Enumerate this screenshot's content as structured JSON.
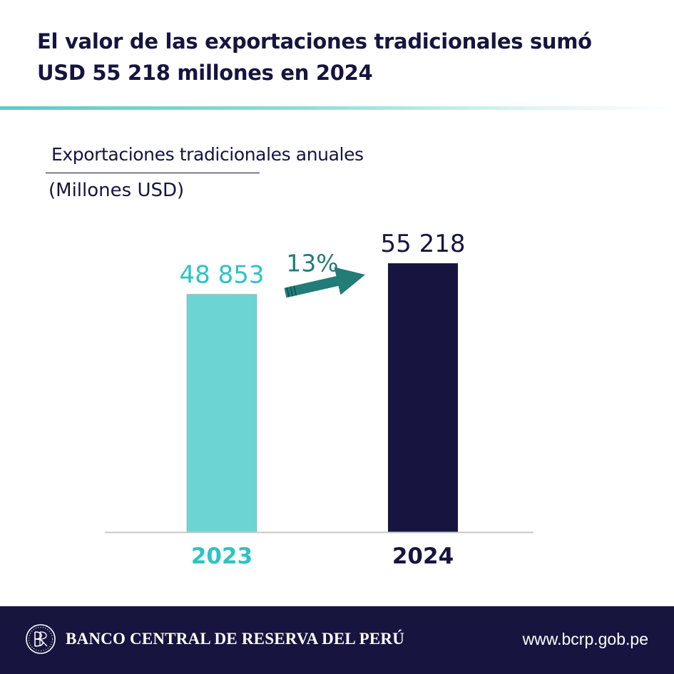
{
  "header": {
    "title_line1": "El valor de las exportaciones tradicionales sumó",
    "title_line2": "USD 55 218 millones en 2024"
  },
  "chart_data": {
    "type": "bar",
    "title": "Exportaciones tradicionales anuales",
    "subtitle": "(Millones USD)",
    "categories": [
      "2023",
      "2024"
    ],
    "values": [
      48853,
      55218
    ],
    "value_labels": [
      "48 853",
      "55 218"
    ],
    "bar_colors": [
      "#6cd5d3",
      "#17153f"
    ],
    "growth_label": "13%",
    "growth_arrow_color": "#227c77",
    "grid": false,
    "legend": "none"
  },
  "footer": {
    "bank_name": "BANCO CENTRAL DE RESERVA DEL PERÚ",
    "website": "www.bcrp.gob.pe",
    "logo_icon": "bcrp-monogram-icon",
    "background": "#17153f"
  }
}
